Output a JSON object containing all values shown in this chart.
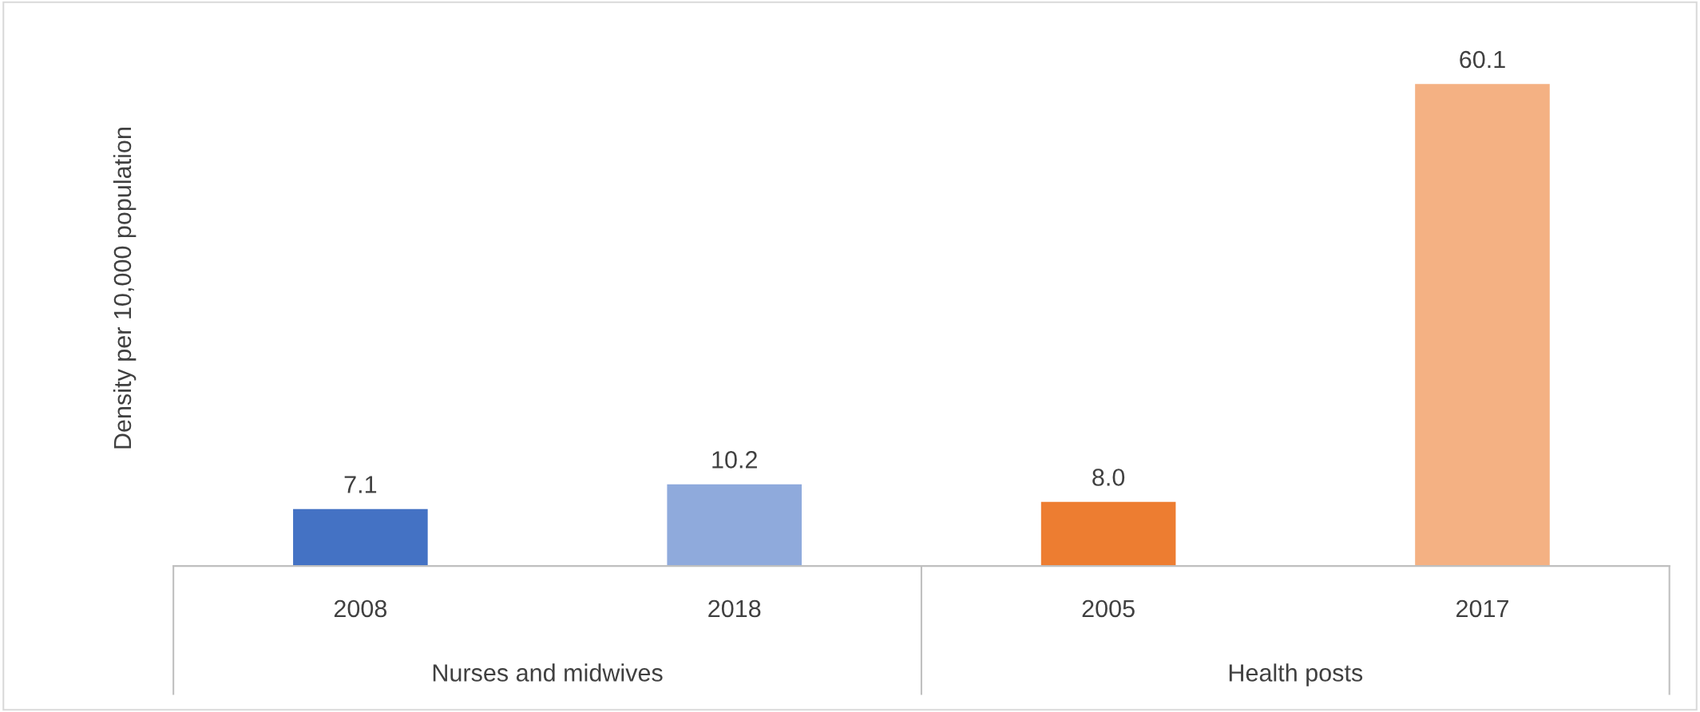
{
  "chart_data": {
    "type": "bar",
    "ylabel": "Density per 10,000 population",
    "categories": [
      "2008",
      "2018",
      "2005",
      "2017"
    ],
    "values": [
      7.1,
      10.2,
      8.0,
      60.1
    ],
    "value_labels": [
      "7.1",
      "10.2",
      "8.0",
      "60.1"
    ],
    "colors": [
      "#4472c4",
      "#8faadc",
      "#ed7d31",
      "#f4b183"
    ],
    "annotations": [
      "Nurses and midwives",
      "Health posts"
    ],
    "grid": false,
    "legend": false
  }
}
